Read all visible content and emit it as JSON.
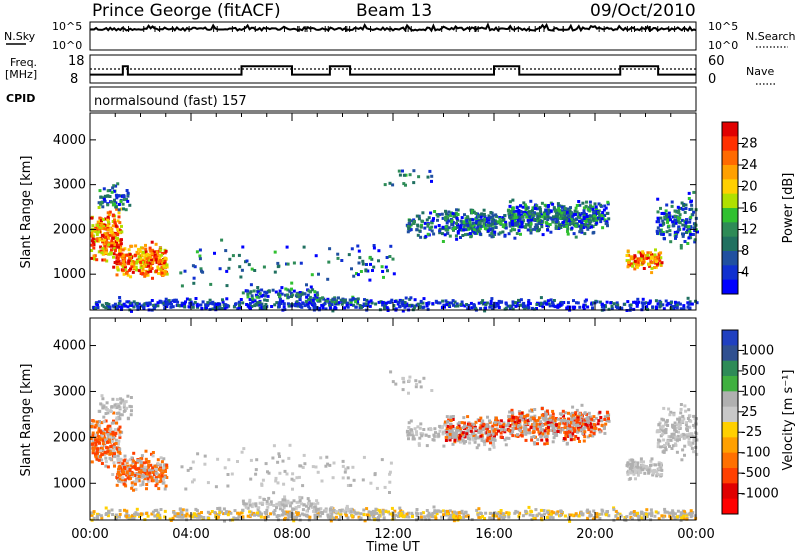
{
  "header": {
    "station": "Prince George (fitACF)",
    "beam": "Beam 13",
    "date": "09/Oct/2010"
  },
  "panels": {
    "nsky_label": "N.Sky",
    "nsearch_label": "N.Search",
    "nsky_ticks": [
      "10^5",
      "10^0"
    ],
    "nsky_right_ticks": [
      "10^5",
      "10^0"
    ],
    "freq_label_line1": "Freq.",
    "freq_label_line2": "[MHz]",
    "freq_ticks": [
      "18",
      "8"
    ],
    "nave_ticks": [
      "60",
      "0"
    ],
    "nave_label": "Nave",
    "cpid_label": "CPID",
    "cpid_text": "normalsound (fast) 157"
  },
  "power_colorbar": {
    "label": "Power [dB]",
    "ticks": [
      "28",
      "24",
      "20",
      "16",
      "12",
      "8",
      "4"
    ],
    "colors": [
      "#e00000",
      "#ff3000",
      "#ff6a00",
      "#ffa000",
      "#ffd000",
      "#b0e000",
      "#30c030",
      "#2e8b57",
      "#207060",
      "#2050a0",
      "#1030d0",
      "#0000ff"
    ]
  },
  "velocity_colorbar": {
    "label": "Velocity [m s⁻¹]",
    "ticks": [
      "1000",
      "500",
      "100",
      "25",
      "-25",
      "-100",
      "-500",
      "-1000"
    ],
    "colors": [
      "#2040c0",
      "#305090",
      "#2e8b57",
      "#40b040",
      "#b0b0b0",
      "#c8c8c8",
      "#ffd000",
      "#ffa000",
      "#ff7000",
      "#ff4000",
      "#e00000",
      "#ff0000"
    ]
  },
  "chart_data": [
    {
      "type": "line",
      "title": "N.Sky / N.Search",
      "x": [
        "00:00",
        "04:00",
        "08:00",
        "12:00",
        "16:00",
        "20:00",
        "00:00"
      ],
      "ylabel": "N.Sky",
      "yscale": "log",
      "ylim": [
        "10^0",
        "10^5"
      ]
    },
    {
      "type": "line",
      "title": "Freq. / Nave",
      "x_hours": [
        0,
        1.3,
        1.5,
        3.0,
        6.0,
        8.0,
        9.5,
        10.3,
        13.0,
        16.0,
        17.0,
        19.0,
        21.0,
        22.5,
        24.0
      ],
      "freq_mhz": [
        11,
        14,
        11,
        11,
        14,
        11,
        14,
        11,
        11,
        14,
        11,
        11,
        14,
        11,
        11
      ],
      "nave_constant": 30,
      "ylabel_left": "Freq. [MHz]",
      "ylim_left": [
        8,
        18
      ],
      "ylabel_right": "Nave",
      "ylim_right": [
        0,
        60
      ]
    },
    {
      "type": "heatmap",
      "title": "Power",
      "xlabel": "Time UT",
      "ylabel": "Slant Range [km]",
      "x_ticks": [
        "00:00",
        "04:00",
        "08:00",
        "12:00",
        "16:00",
        "20:00",
        "00:00"
      ],
      "y_ticks": [
        1000,
        2000,
        3000,
        4000
      ],
      "ylim": [
        200,
        4600
      ],
      "colorbar": "Power [dB]",
      "clim": [
        0,
        30
      ]
    },
    {
      "type": "heatmap",
      "title": "Velocity",
      "xlabel": "Time UT",
      "ylabel": "Slant Range [km]",
      "x_ticks": [
        "00:00",
        "04:00",
        "08:00",
        "12:00",
        "16:00",
        "20:00",
        "00:00"
      ],
      "y_ticks": [
        1000,
        2000,
        3000,
        4000
      ],
      "ylim": [
        200,
        4600
      ],
      "colorbar": "Velocity [m s⁻¹]",
      "clim": [
        -1000,
        1000
      ]
    }
  ],
  "axes": {
    "xlabel": "Time UT",
    "ylabel": "Slant Range [km]",
    "x_ticks": [
      "00:00",
      "04:00",
      "08:00",
      "12:00",
      "16:00",
      "20:00",
      "00:00"
    ],
    "y_ticks": [
      "4000",
      "3000",
      "2000",
      "1000"
    ]
  }
}
